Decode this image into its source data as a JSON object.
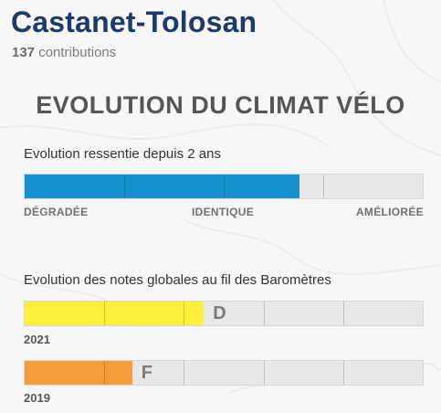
{
  "city": "Castanet-Tolosan",
  "contributions": {
    "count": "137",
    "label": "contributions"
  },
  "section_title": "EVOLUTION DU CLIMAT VÉLO",
  "perceived": {
    "label": "Evolution ressentie depuis 2 ans",
    "value_fraction": 0.69,
    "color": "#1490cc",
    "scale": {
      "left": "DÉGRADÉE",
      "middle": "IDENTIQUE",
      "right": "AMÉLIORÉE"
    }
  },
  "history": {
    "label": "Evolution des notes globales au fil des Baromètres",
    "rows": [
      {
        "year": "2021",
        "grade": "D",
        "value_fraction": 0.45,
        "color": "#fef03a"
      },
      {
        "year": "2019",
        "grade": "F",
        "value_fraction": 0.27,
        "color": "#f59b3a"
      }
    ]
  }
}
